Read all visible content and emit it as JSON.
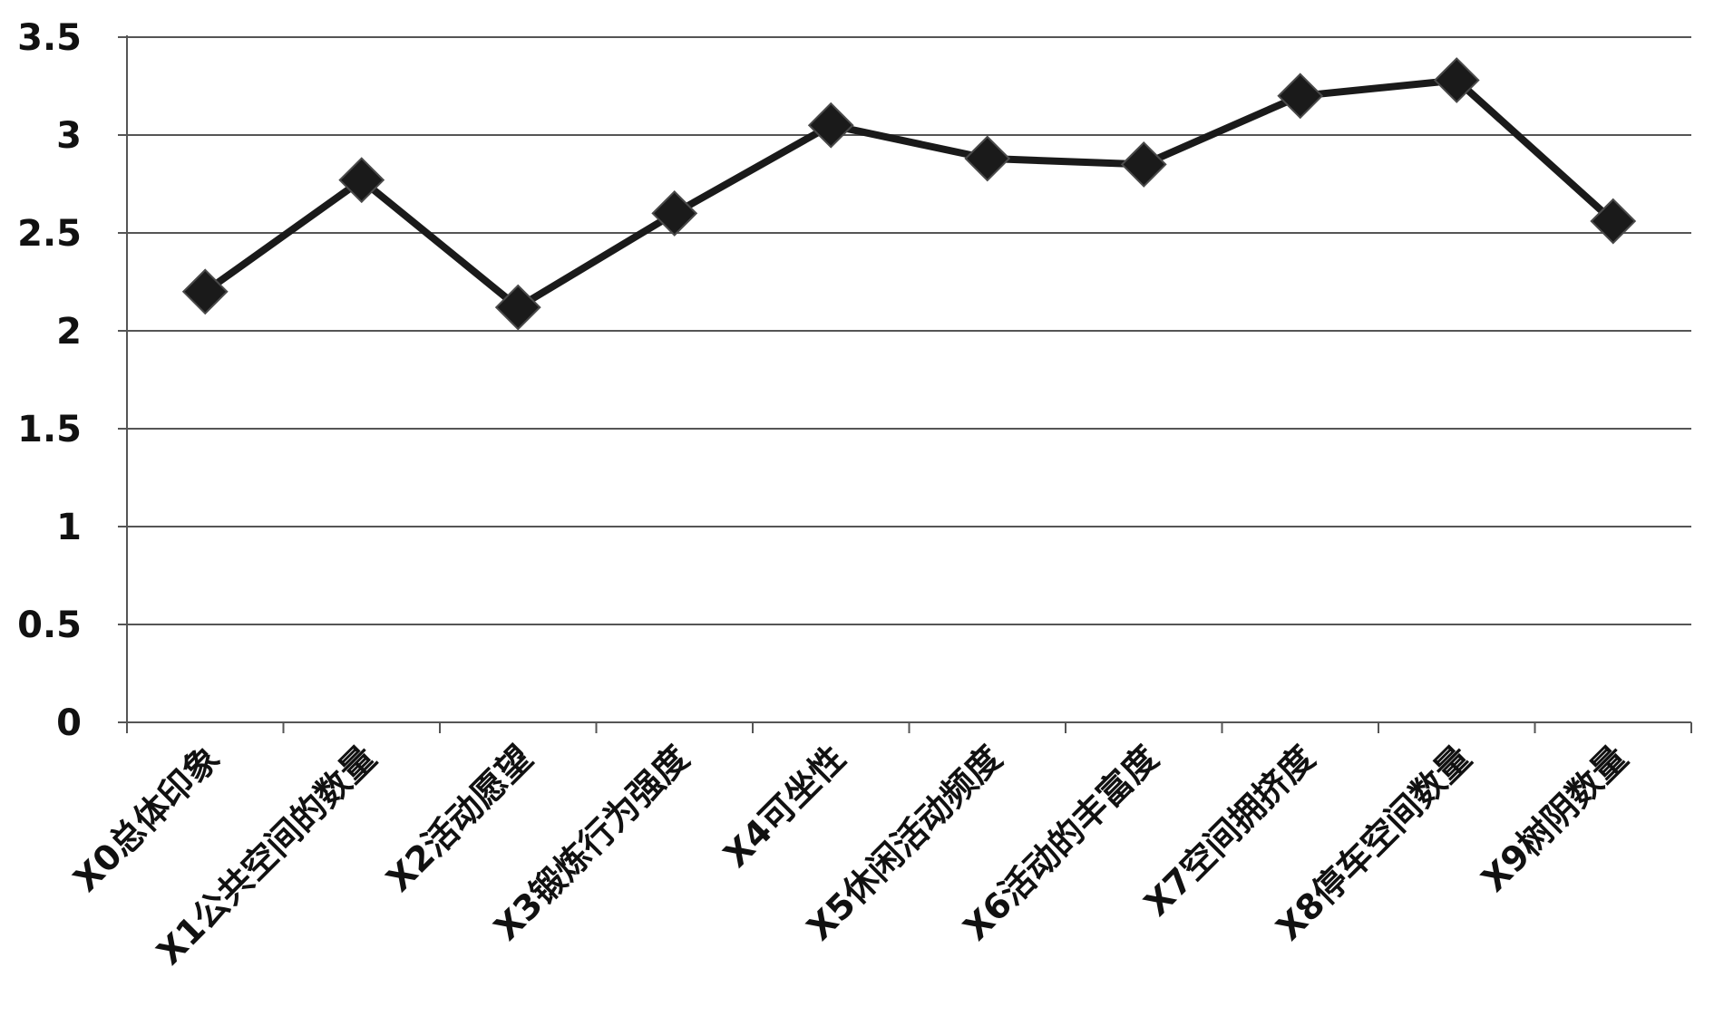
{
  "chart_data": {
    "type": "line",
    "title": "",
    "xlabel": "",
    "ylabel": "",
    "categories": [
      "X0总体印象",
      "X1公共空间的数量",
      "X2活动愿望",
      "X3锻炼行为强度",
      "X4可坐性",
      "X5休闲活动频度",
      "X6活动的丰富度",
      "X7空间拥挤度",
      "X8停车空间数量",
      "X9树阴数量"
    ],
    "series": [
      {
        "values": [
          2.2,
          2.77,
          2.12,
          2.6,
          3.05,
          2.88,
          2.85,
          3.2,
          3.28,
          2.56
        ]
      }
    ],
    "ylim": [
      0,
      3.5
    ],
    "yticks": [
      "0",
      "0.5",
      "1",
      "1.5",
      "2",
      "2.5",
      "3",
      "3.5"
    ],
    "grid": true,
    "legend": "none",
    "marker": "diamond",
    "colors": {
      "line": "#1a1a1a",
      "marker": "#1a1a1a",
      "grid": "#555555",
      "axis": "#555555",
      "text": "#111111"
    }
  }
}
